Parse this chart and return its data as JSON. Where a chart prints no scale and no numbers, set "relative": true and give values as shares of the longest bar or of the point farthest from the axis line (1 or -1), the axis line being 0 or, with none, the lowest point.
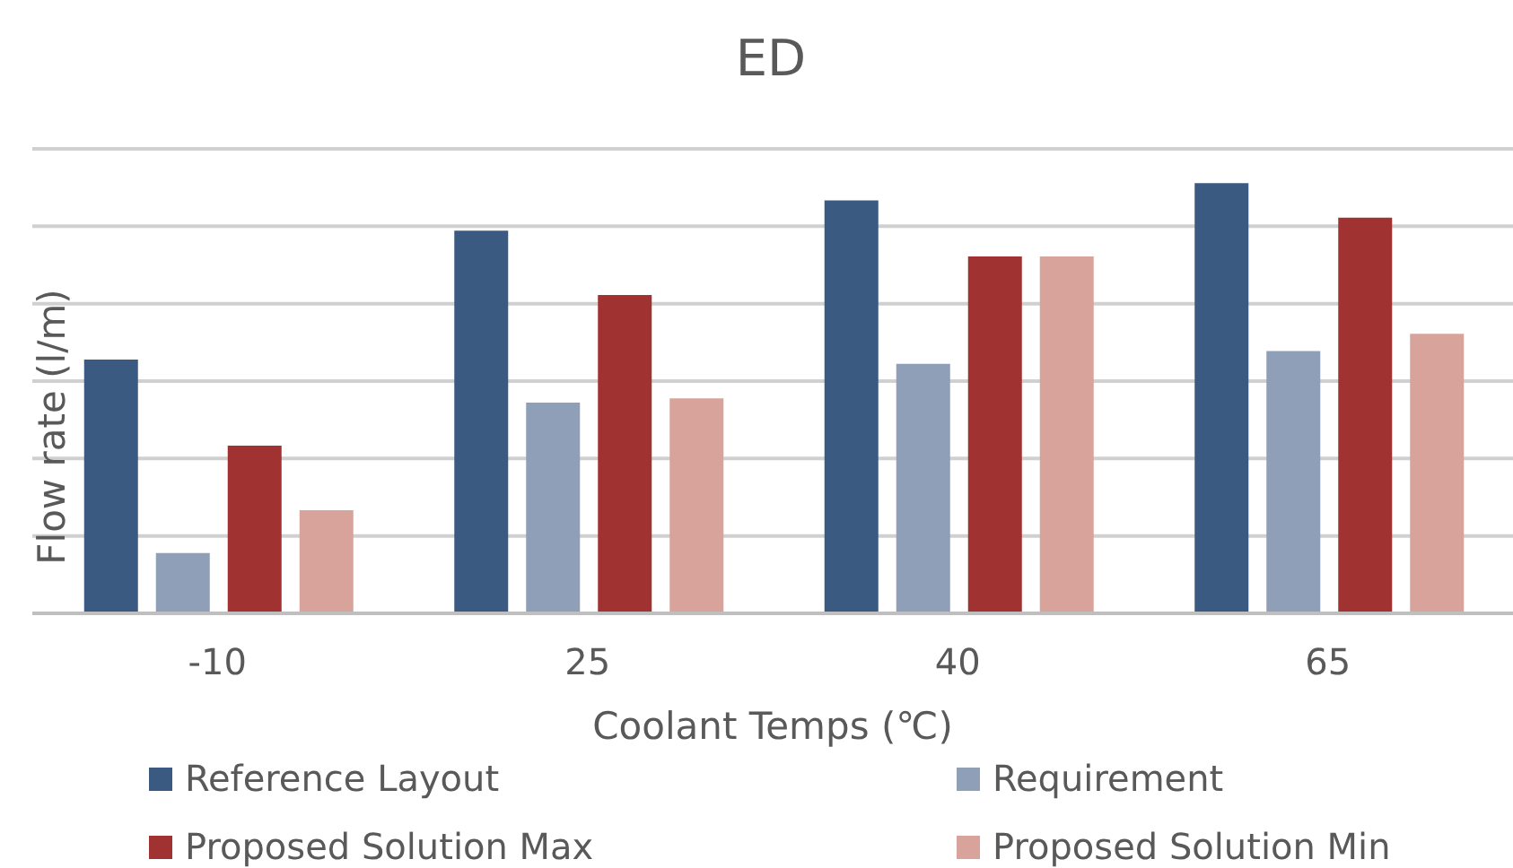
{
  "chart_data": {
    "type": "bar",
    "title": "ED",
    "xlabel": "Coolant Temps (℃)",
    "ylabel": "Flow rate (l/m)",
    "relative": true,
    "grid": "y",
    "legend": "bottom",
    "categories": [
      "-10",
      "25",
      "40",
      "65"
    ],
    "series": [
      {
        "name": "Reference Layout",
        "color": "#3b5a82",
        "values": [
          0.59,
          0.89,
          0.96,
          1
        ]
      },
      {
        "name": "Requirement",
        "color": "#8f9fb7",
        "values": [
          0.14,
          0.49,
          0.58,
          0.61
        ]
      },
      {
        "name": "Proposed Solution Max",
        "color": "#a03232",
        "values": [
          0.39,
          0.74,
          0.83,
          0.92
        ]
      },
      {
        "name": "Proposed Solution Min",
        "color": "#d7a39a",
        "values": [
          0.24,
          0.5,
          0.83,
          0.65
        ]
      }
    ]
  }
}
